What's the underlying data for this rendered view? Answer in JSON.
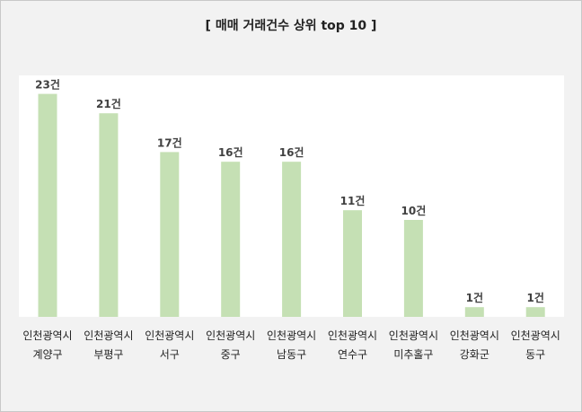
{
  "chart_data": {
    "type": "bar",
    "title": "[ 매매 거래건수 상위 top 10 ]",
    "unit_suffix": "건",
    "categories": [
      [
        "인천광역시",
        "계양구"
      ],
      [
        "인천광역시",
        "부평구"
      ],
      [
        "인천광역시",
        "서구"
      ],
      [
        "인천광역시",
        "중구"
      ],
      [
        "인천광역시",
        "남동구"
      ],
      [
        "인천광역시",
        "연수구"
      ],
      [
        "인천광역시",
        "미추홀구"
      ],
      [
        "인천광역시",
        "강화군"
      ],
      [
        "인천광역시",
        "동구"
      ]
    ],
    "values": [
      23,
      21,
      17,
      16,
      16,
      11,
      10,
      1,
      1
    ],
    "ylim": [
      0,
      25
    ],
    "grid": false,
    "legend": "none",
    "colors": {
      "bar": "#c5e0b4",
      "background": "#f2f2f2",
      "plot": "#ffffff"
    }
  }
}
